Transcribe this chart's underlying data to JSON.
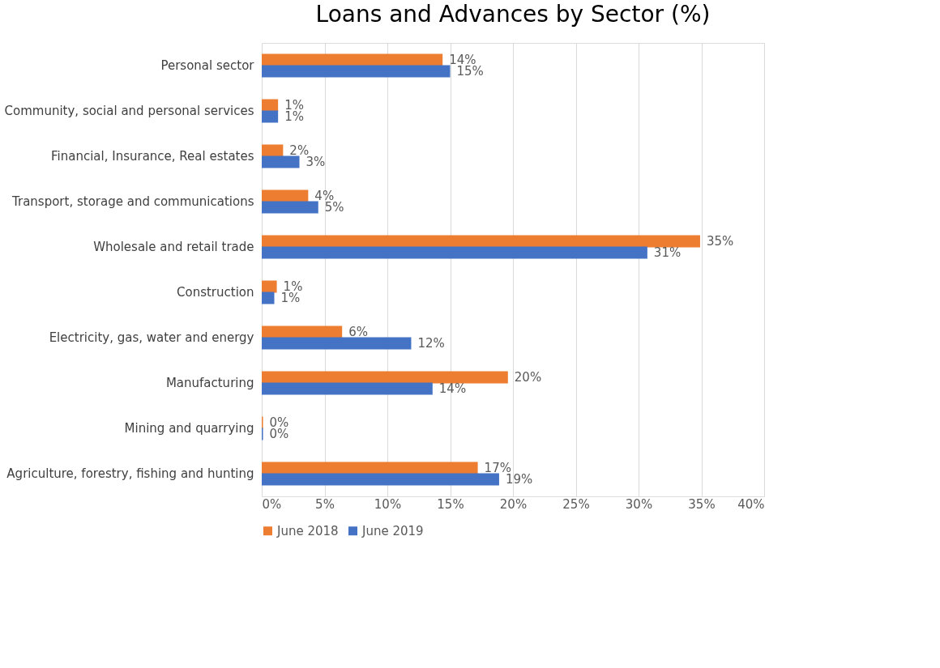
{
  "chart_data": {
    "type": "bar",
    "orientation": "horizontal",
    "title": "Loans and Advances by Sector (%)",
    "categories": [
      "Personal sector",
      "Community, social and personal services",
      "Financial, Insurance, Real estates",
      "Transport, storage and communications",
      "Wholesale and retail trade",
      "Construction",
      "Electricity, gas, water and energy",
      "Manufacturing",
      "Mining and quarrying",
      "Agriculture, forestry, fishing and hunting"
    ],
    "series": [
      {
        "name": "June 2018",
        "color": "#ed7d31",
        "values": [
          14.4,
          1.3,
          1.7,
          3.7,
          34.9,
          1.2,
          6.4,
          19.6,
          0.1,
          17.2
        ],
        "value_labels": [
          "14%",
          "1%",
          "2%",
          "4%",
          "35%",
          "1%",
          "6%",
          "20%",
          "0%",
          "17%"
        ]
      },
      {
        "name": "June 2019",
        "color": "#4472c4",
        "values": [
          15.0,
          1.3,
          3.0,
          4.5,
          30.7,
          1.0,
          11.9,
          13.6,
          0.1,
          18.9
        ],
        "value_labels": [
          "15%",
          "1%",
          "3%",
          "5%",
          "31%",
          "1%",
          "12%",
          "14%",
          "0%",
          "19%"
        ]
      }
    ],
    "xlim": [
      0,
      40
    ],
    "xticks": [
      {
        "value": 0,
        "label": "0%"
      },
      {
        "value": 5,
        "label": "5%"
      },
      {
        "value": 10,
        "label": "10%"
      },
      {
        "value": 15,
        "label": "15%"
      },
      {
        "value": 20,
        "label": "20%"
      },
      {
        "value": 25,
        "label": "25%"
      },
      {
        "value": 30,
        "label": "30%"
      },
      {
        "value": 35,
        "label": "35%"
      },
      {
        "value": 40,
        "label": "40%"
      }
    ],
    "grid": "x",
    "legend": "bottom"
  }
}
